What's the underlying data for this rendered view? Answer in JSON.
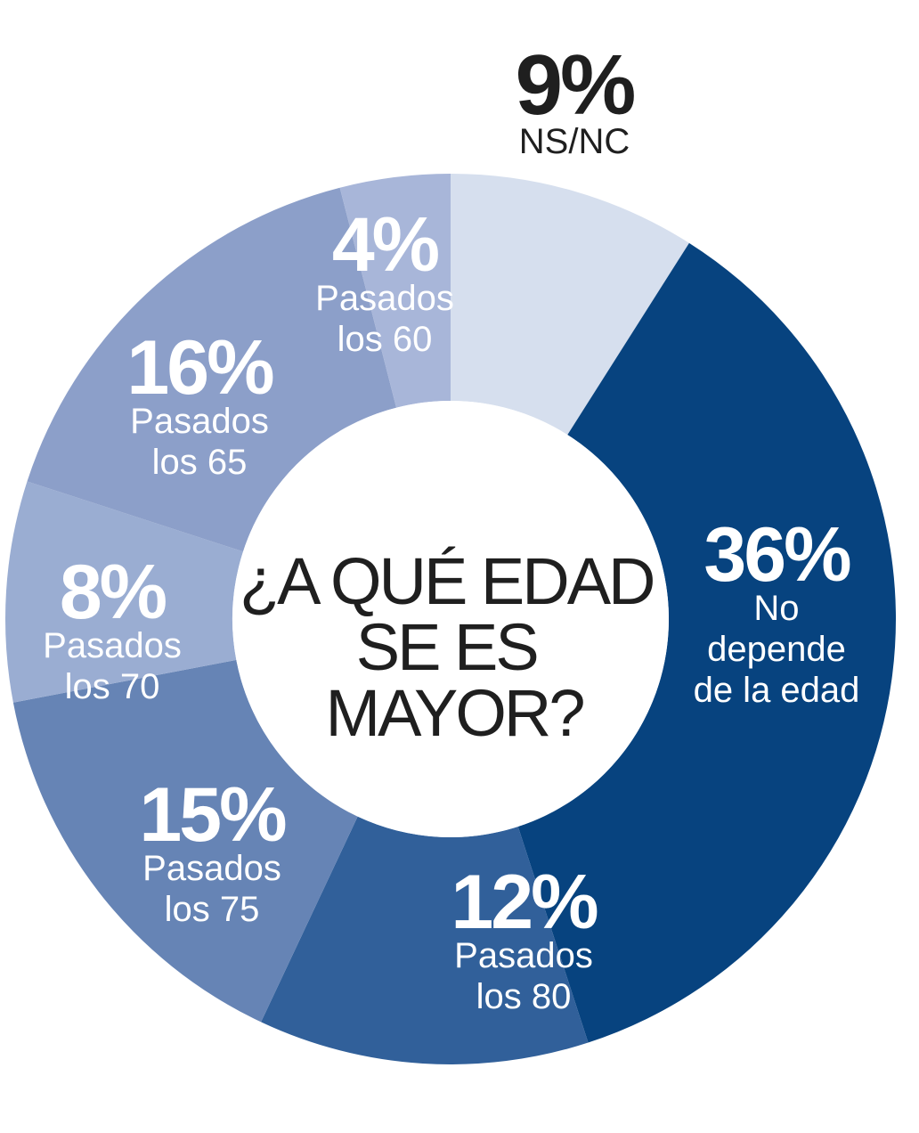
{
  "chart_data": {
    "type": "pie",
    "variant": "donut",
    "center_title": [
      "¿A QUÉ EDAD",
      "SE ES",
      "MAYOR?"
    ],
    "slices": [
      {
        "value": 9,
        "value_label": "9%",
        "label_lines": [
          "NS/NC"
        ],
        "color": "#d6dfee",
        "label_outside": true
      },
      {
        "value": 36,
        "value_label": "36%",
        "label_lines": [
          "No",
          "depende",
          "de la edad"
        ],
        "color": "#07437f"
      },
      {
        "value": 12,
        "value_label": "12%",
        "label_lines": [
          "Pasados",
          "los 80"
        ],
        "color": "#31609a"
      },
      {
        "value": 15,
        "value_label": "15%",
        "label_lines": [
          "Pasados",
          "los 75"
        ],
        "color": "#6684b5"
      },
      {
        "value": 8,
        "value_label": "8%",
        "label_lines": [
          "Pasados",
          "los 70"
        ],
        "color": "#9aadd2"
      },
      {
        "value": 16,
        "value_label": "16%",
        "label_lines": [
          "Pasados",
          "los 65"
        ],
        "color": "#8c9fc9"
      },
      {
        "value": 4,
        "value_label": "4%",
        "label_lines": [
          "Pasados",
          "los 60"
        ],
        "color": "#a8b6d9"
      }
    ],
    "start": "top",
    "direction": "clockwise",
    "legend": "none",
    "text_colors": {
      "inside": "#ffffff",
      "outside": "#1f1f1f",
      "center": "#1f1f1f"
    }
  }
}
